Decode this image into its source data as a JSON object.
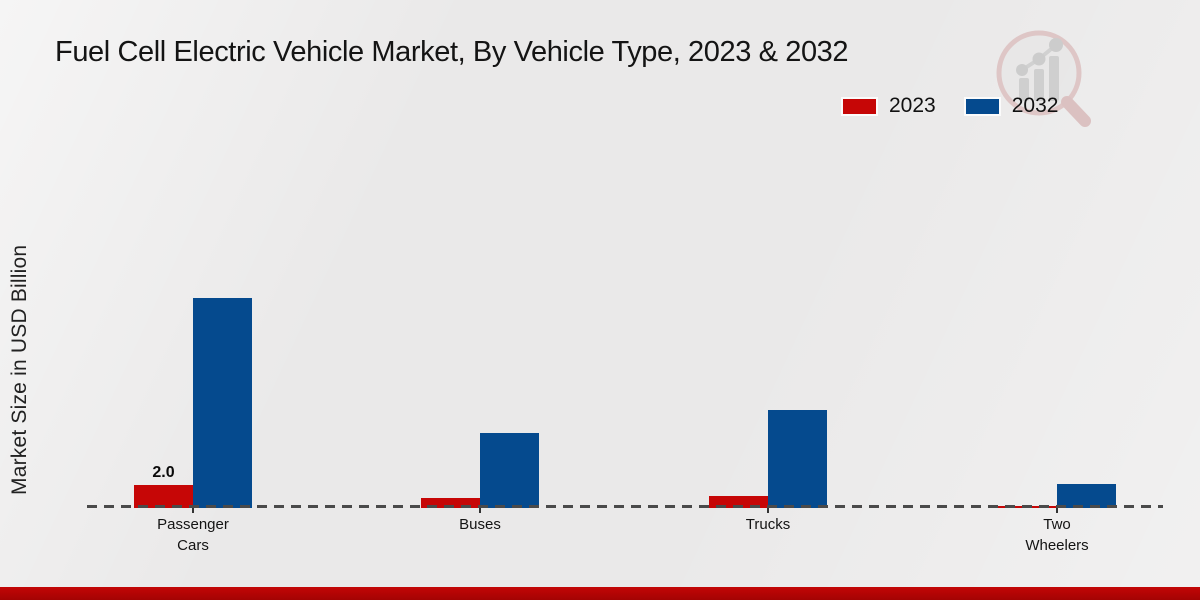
{
  "page": {
    "title": "Fuel Cell Electric Vehicle Market, By Vehicle Type, 2023 & 2032",
    "ylabel": "Market Size in USD Billion"
  },
  "colors": {
    "series_2023": "#c60606",
    "series_2032": "#054a8e",
    "footer_strip": "#b30505",
    "baseline_dash": "#4a4a4a",
    "background": "#eae9e9"
  },
  "legend": {
    "position": "top-right",
    "items": [
      {
        "label": "2023",
        "color": "#c60606"
      },
      {
        "label": "2032",
        "color": "#054a8e"
      }
    ]
  },
  "chart_data": {
    "type": "bar",
    "title": "Fuel Cell Electric Vehicle Market, By Vehicle Type, 2023 & 2032",
    "xlabel": "",
    "ylabel": "Market Size in USD Billion",
    "categories": [
      "Passenger Cars",
      "Buses",
      "Trucks",
      "Two Wheelers"
    ],
    "tick_label_lines": [
      [
        "Passenger",
        "Cars"
      ],
      [
        "Buses"
      ],
      [
        "Trucks"
      ],
      [
        "Two",
        "Wheelers"
      ]
    ],
    "series": [
      {
        "name": "2023",
        "color": "#c60606",
        "values": [
          2.0,
          0.85,
          1.0,
          0.2
        ],
        "labels": [
          "2.0",
          "",
          "",
          ""
        ]
      },
      {
        "name": "2032",
        "color": "#054a8e",
        "values": [
          18.3,
          6.5,
          8.5,
          2.1
        ],
        "labels": [
          "",
          "",
          "",
          ""
        ]
      }
    ],
    "ylim": [
      0,
      20
    ],
    "grid": false,
    "y_axis_ticks_visible": false,
    "baseline_style": "dashed",
    "legend_position": "top-right",
    "logo_watermark": "market-research-future-magnifier-logo"
  }
}
